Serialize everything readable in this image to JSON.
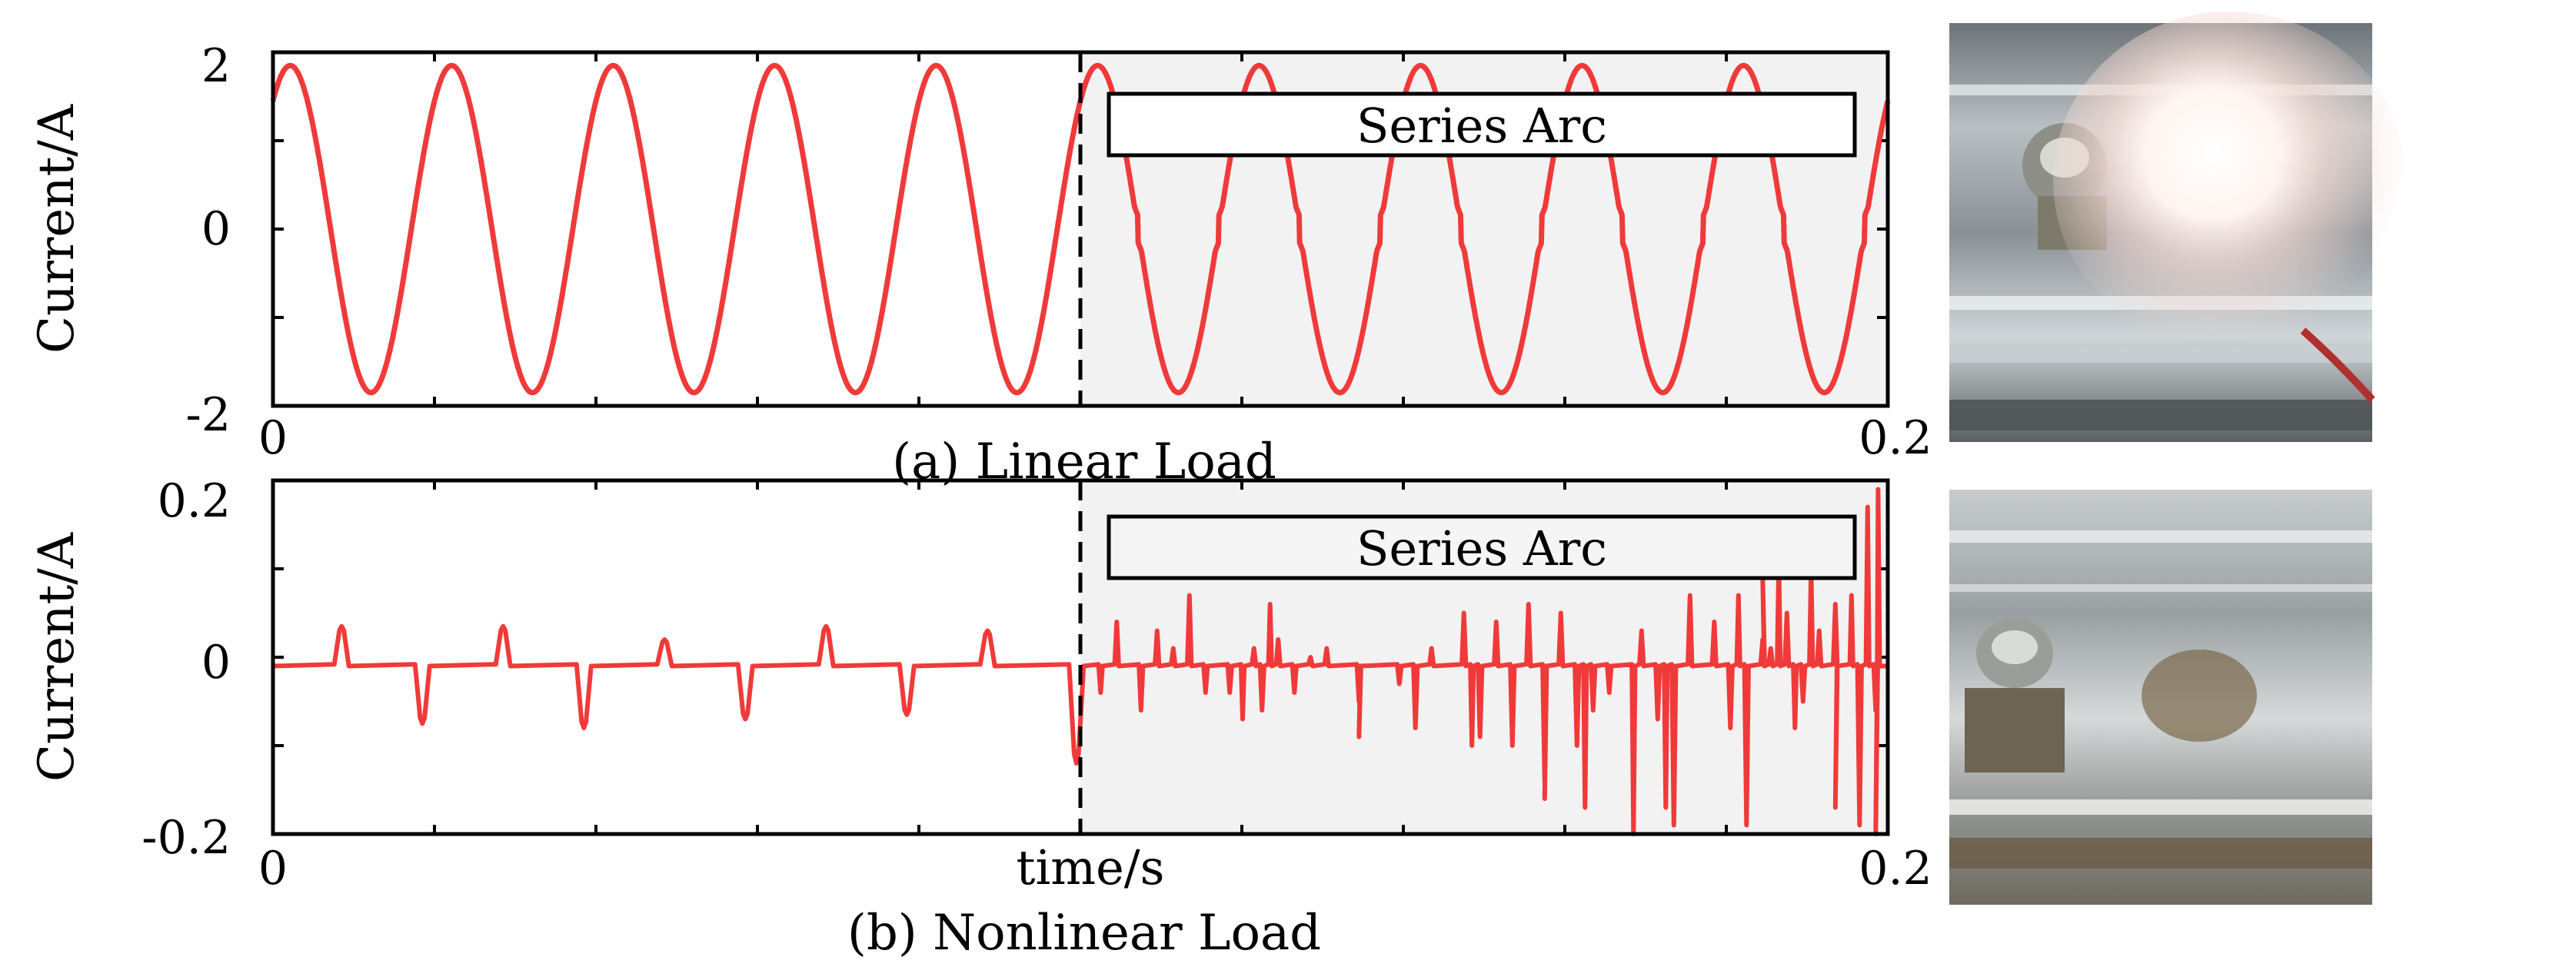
{
  "chart_data": [
    {
      "type": "line",
      "caption": "(a) Linear Load",
      "ylabel": "Current/A",
      "xlabel": "",
      "xlim": [
        0,
        0.2
      ],
      "ylim": [
        -2,
        2
      ],
      "x_tick_labels": [
        "0",
        "0.2"
      ],
      "y_tick_labels": [
        "2",
        "0",
        "-2"
      ],
      "arc_start_time": 0.1,
      "arc_region_label": "Series Arc",
      "series": [
        {
          "color": "#f03a3a",
          "waveform": "sine",
          "amplitude": 1.85,
          "frequency_hz": 50,
          "phase_rad": 0.9
        }
      ]
    },
    {
      "type": "line",
      "caption": "(b) Nonlinear Load",
      "ylabel": "Current/A",
      "xlabel": "time/s",
      "xlim": [
        0,
        0.2
      ],
      "ylim": [
        -0.2,
        0.2
      ],
      "x_tick_labels": [
        "0",
        "0.2"
      ],
      "y_tick_labels": [
        "0.2",
        "0",
        "-0.2"
      ],
      "arc_start_time": 0.1,
      "arc_region_label": "Series Arc",
      "series": [
        {
          "color": "#f03a3a",
          "baseline": -0.01,
          "pulses": [
            [
              0.0085,
              0.045
            ],
            [
              0.0185,
              -0.065
            ],
            [
              0.0285,
              0.045
            ],
            [
              0.0385,
              -0.07
            ],
            [
              0.0485,
              0.03
            ],
            [
              0.0585,
              -0.06
            ],
            [
              0.0685,
              0.045
            ],
            [
              0.0785,
              -0.055
            ],
            [
              0.0885,
              0.04
            ],
            [
              0.0995,
              -0.11
            ]
          ],
          "arc_spikes": [
            [
              0.1025,
              -0.03
            ],
            [
              0.1045,
              0.05
            ],
            [
              0.1075,
              -0.05
            ],
            [
              0.1095,
              0.04
            ],
            [
              0.1115,
              0.02
            ],
            [
              0.1135,
              0.08
            ],
            [
              0.1155,
              -0.03
            ],
            [
              0.1185,
              -0.03
            ],
            [
              0.1215,
              0.02
            ],
            [
              0.1225,
              -0.05
            ],
            [
              0.1245,
              0.03
            ],
            [
              0.1265,
              -0.03
            ],
            [
              0.1285,
              0.01
            ],
            [
              0.1305,
              0.02
            ],
            [
              0.1345,
              -0.04
            ],
            [
              0.1395,
              -0.02
            ],
            [
              0.1415,
              -0.07
            ],
            [
              0.1435,
              0.02
            ],
            [
              0.1475,
              0.06
            ],
            [
              0.1495,
              -0.08
            ],
            [
              0.1515,
              0.05
            ],
            [
              0.1535,
              -0.09
            ],
            [
              0.1555,
              0.07
            ],
            [
              0.1575,
              -0.13
            ],
            [
              0.1595,
              0.06
            ],
            [
              0.1615,
              -0.09
            ],
            [
              0.1635,
              -0.05
            ],
            [
              0.1655,
              -0.03
            ],
            [
              0.1695,
              0.04
            ],
            [
              0.1715,
              -0.06
            ],
            [
              0.1735,
              -0.18
            ],
            [
              0.1755,
              0.08
            ],
            [
              0.1785,
              0.05
            ],
            [
              0.1805,
              -0.07
            ],
            [
              0.1825,
              -0.18
            ],
            [
              0.1845,
              0.03
            ],
            [
              0.1855,
              0.02
            ],
            [
              0.1875,
              0.06
            ],
            [
              0.1895,
              -0.04
            ],
            [
              0.1915,
              0.04
            ],
            [
              0.1935,
              0.07
            ],
            [
              0.1965,
              -0.18
            ],
            [
              0.1985,
              -0.05
            ]
          ],
          "arc_large_spikes": [
            [
              0.1201,
              -0.06
            ],
            [
              0.1235,
              0.07
            ],
            [
              0.1345,
              -0.08
            ],
            [
              0.1485,
              -0.09
            ],
            [
              0.1575,
              -0.15
            ],
            [
              0.1625,
              -0.16
            ],
            [
              0.1685,
              -0.19
            ],
            [
              0.1725,
              -0.16
            ],
            [
              0.1815,
              0.08
            ],
            [
              0.1845,
              0.1
            ],
            [
              0.1865,
              0.12
            ],
            [
              0.1885,
              -0.07
            ],
            [
              0.1905,
              0.11
            ],
            [
              0.1935,
              -0.16
            ],
            [
              0.1955,
              0.08
            ],
            [
              0.1975,
              0.18
            ],
            [
              0.1985,
              -0.19
            ],
            [
              0.1988,
              0.2
            ]
          ]
        }
      ]
    }
  ]
}
